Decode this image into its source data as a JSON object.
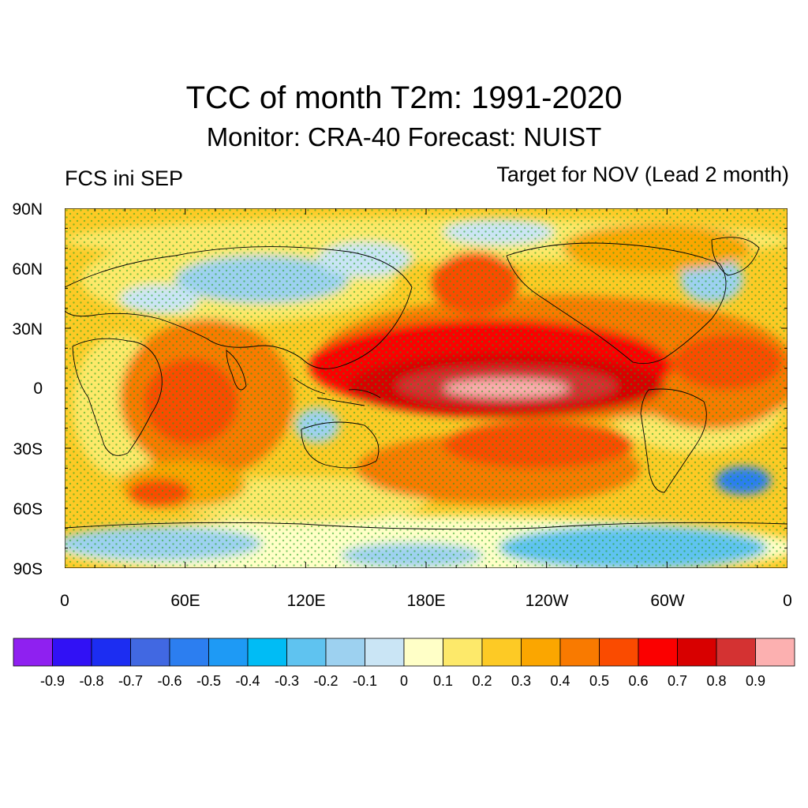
{
  "header": {
    "title": "TCC of month T2m: 1991-2020",
    "subtitle": "Monitor: CRA-40   Forecast: NUIST",
    "left_label": "FCS ini SEP",
    "right_label": "Target for NOV (Lead 2 month)"
  },
  "map": {
    "projection": "cylindrical-equidistant",
    "central_longitude": "180E",
    "lat_labels": [
      "90N",
      "60N",
      "30N",
      "0",
      "30S",
      "60S",
      "90S"
    ],
    "lon_labels": [
      "0",
      "60E",
      "120E",
      "180E",
      "120W",
      "60W",
      "0"
    ],
    "stipple_color": "#1fa21f",
    "coastline_color": "#000000"
  },
  "colorbar": {
    "levels": [
      "-0.9",
      "-0.8",
      "-0.7",
      "-0.6",
      "-0.5",
      "-0.4",
      "-0.3",
      "-0.2",
      "-0.1",
      "0",
      "0.1",
      "0.2",
      "0.3",
      "0.4",
      "0.5",
      "0.6",
      "0.7",
      "0.8",
      "0.9"
    ],
    "colors": [
      "#8f20f0",
      "#3111f5",
      "#1c2df2",
      "#4168e2",
      "#2c7ef0",
      "#1e9af5",
      "#00bcf5",
      "#5fc3f0",
      "#9dd1f0",
      "#cae5f5",
      "#ffffc7",
      "#fde96a",
      "#fdca25",
      "#fba600",
      "#f97a00",
      "#fa4b00",
      "#fb0000",
      "#d80000",
      "#d43232",
      "#fcb0b0"
    ]
  }
}
